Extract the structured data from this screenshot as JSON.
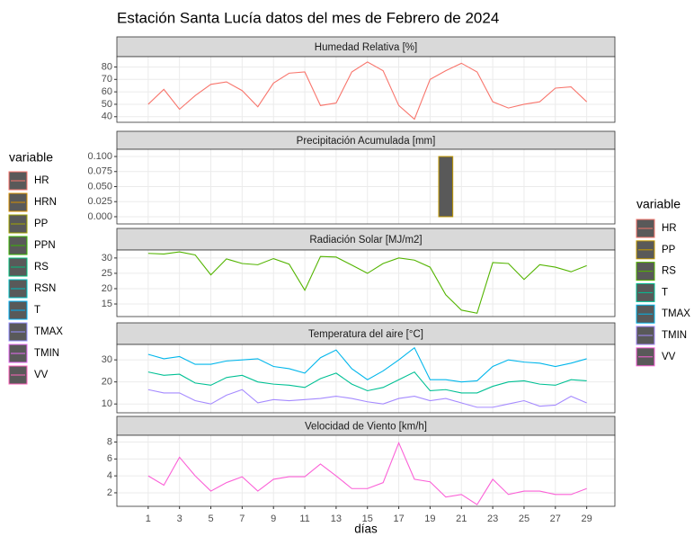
{
  "title": "Estación Santa Lucía datos del mes de Febrero de 2024",
  "x_label": "días",
  "legends": [
    {
      "title": "variable",
      "items": [
        {
          "name": "HR",
          "color": "#F8766D"
        },
        {
          "name": "HRN",
          "color": "#D89000"
        },
        {
          "name": "PP",
          "color": "#A3A500"
        },
        {
          "name": "PPN",
          "color": "#39B600"
        },
        {
          "name": "RS",
          "color": "#00BF7D"
        },
        {
          "name": "RSN",
          "color": "#00BFC4"
        },
        {
          "name": "T",
          "color": "#00B0F6"
        },
        {
          "name": "TMAX",
          "color": "#9590FF"
        },
        {
          "name": "TMIN",
          "color": "#E76BF3"
        },
        {
          "name": "VV",
          "color": "#FF62BC"
        }
      ]
    },
    {
      "title": "variable",
      "items": [
        {
          "name": "HR",
          "color": "#F8766D"
        },
        {
          "name": "PP",
          "color": "#C49A00"
        },
        {
          "name": "RS",
          "color": "#53B400"
        },
        {
          "name": "T",
          "color": "#00C094"
        },
        {
          "name": "TMAX",
          "color": "#00B6EB"
        },
        {
          "name": "TMIN",
          "color": "#A58AFF"
        },
        {
          "name": "VV",
          "color": "#FB61D7"
        }
      ]
    }
  ],
  "chart_data": [
    {
      "type": "line",
      "title": "Humedad Relativa [%]",
      "x": [
        1,
        2,
        3,
        4,
        5,
        6,
        7,
        8,
        9,
        10,
        11,
        12,
        13,
        14,
        15,
        16,
        17,
        18,
        19,
        20,
        21,
        22,
        23,
        24,
        25,
        26,
        27,
        28,
        29
      ],
      "xlim": [
        -1,
        30.8
      ],
      "xticks": [
        1,
        3,
        5,
        7,
        9,
        11,
        13,
        15,
        17,
        19,
        21,
        23,
        25,
        27,
        29
      ],
      "ylim": [
        35.5,
        88.3
      ],
      "yticks": [
        40,
        50,
        60,
        70,
        80
      ],
      "series": [
        {
          "name": "HR",
          "color": "#F8766D",
          "values": [
            50,
            62,
            46,
            57,
            66,
            68,
            61,
            48,
            67,
            75,
            76,
            49,
            51,
            76,
            84,
            77,
            49,
            38,
            70,
            77,
            83,
            76,
            52,
            47,
            50,
            52,
            63,
            64,
            52
          ]
        }
      ]
    },
    {
      "type": "bar",
      "title": "Precipitación Acumulada [mm]",
      "x": [
        1,
        2,
        3,
        4,
        5,
        6,
        7,
        8,
        9,
        10,
        11,
        12,
        13,
        14,
        15,
        16,
        17,
        18,
        19,
        20,
        21,
        22,
        23,
        24,
        25,
        26,
        27,
        28,
        29
      ],
      "xlim": [
        -1,
        30.8
      ],
      "xticks": [
        1,
        3,
        5,
        7,
        9,
        11,
        13,
        15,
        17,
        19,
        21,
        23,
        25,
        27,
        29
      ],
      "ylim": [
        -0.012,
        0.112
      ],
      "yticks": [
        {
          "value": 0,
          "label": "0.000"
        },
        {
          "value": 0.025,
          "label": "0.025"
        },
        {
          "value": 0.05,
          "label": "0.050"
        },
        {
          "value": 0.075,
          "label": "0.075"
        },
        {
          "value": 0.1,
          "label": "0.100"
        }
      ],
      "series": [
        {
          "name": "PP",
          "color": "#C49A00",
          "values": [
            0,
            0,
            0,
            0,
            0,
            0,
            0,
            0,
            0,
            0,
            0,
            0,
            0,
            0,
            0,
            0,
            0,
            0,
            0,
            0.1,
            0,
            0,
            0,
            0,
            0,
            0,
            0,
            0,
            0
          ]
        }
      ]
    },
    {
      "type": "line",
      "title": "Radiación Solar [MJ/m2]",
      "x": [
        1,
        2,
        3,
        4,
        5,
        6,
        7,
        8,
        9,
        10,
        11,
        12,
        13,
        14,
        15,
        16,
        17,
        18,
        19,
        20,
        21,
        22,
        23,
        24,
        25,
        26,
        27,
        28,
        29
      ],
      "xlim": [
        -1,
        30.8
      ],
      "xticks": [
        1,
        3,
        5,
        7,
        9,
        11,
        13,
        15,
        17,
        19,
        21,
        23,
        25,
        27,
        29
      ],
      "ylim": [
        10.9,
        32.6
      ],
      "yticks": [
        15,
        20,
        25,
        30
      ],
      "series": [
        {
          "name": "RS",
          "color": "#53B400",
          "values": [
            31.5,
            31.3,
            32,
            31,
            24.5,
            29.7,
            28.2,
            27.8,
            29.8,
            28,
            19.5,
            30.5,
            30.3,
            27.7,
            25,
            28.2,
            30,
            29.3,
            27,
            18,
            13,
            12,
            28.5,
            28.2,
            23,
            27.8,
            27,
            25.5,
            27.5
          ]
        }
      ]
    },
    {
      "type": "line",
      "title": "Temperatura del aire [°C]",
      "x": [
        1,
        2,
        3,
        4,
        5,
        6,
        7,
        8,
        9,
        10,
        11,
        12,
        13,
        14,
        15,
        16,
        17,
        18,
        19,
        20,
        21,
        22,
        23,
        24,
        25,
        26,
        27,
        28,
        29
      ],
      "xlim": [
        -1,
        30.8
      ],
      "xticks": [
        1,
        3,
        5,
        7,
        9,
        11,
        13,
        15,
        17,
        19,
        21,
        23,
        25,
        27,
        29
      ],
      "ylim": [
        6,
        37
      ],
      "yticks": [
        10,
        20,
        30
      ],
      "series": [
        {
          "name": "T",
          "color": "#00C094",
          "values": [
            24.5,
            23,
            23.5,
            19.5,
            18.5,
            22,
            23,
            20,
            19,
            18.5,
            17.5,
            21.5,
            24,
            19,
            16,
            17.5,
            21,
            24.5,
            16,
            16.5,
            15,
            15,
            18,
            20,
            20.5,
            19,
            18.5,
            21,
            20.5
          ]
        },
        {
          "name": "TMAX",
          "color": "#00B6EB",
          "values": [
            32.5,
            30.5,
            31.5,
            28,
            28,
            29.5,
            30,
            30.5,
            27,
            26,
            24,
            31,
            34.5,
            26,
            21,
            25,
            30,
            35.5,
            21,
            21,
            20,
            20.5,
            27,
            30,
            29,
            28.5,
            27,
            28.5,
            30.5
          ]
        },
        {
          "name": "TMIN",
          "color": "#A58AFF",
          "values": [
            16.5,
            15,
            15,
            11.5,
            10,
            14,
            16.5,
            10.5,
            12,
            11.5,
            12,
            12.5,
            13.5,
            12.5,
            11,
            10,
            12.5,
            13.5,
            11.5,
            12.5,
            10.5,
            8.5,
            8.5,
            10,
            11.5,
            9,
            9.5,
            13.5,
            10.5
          ]
        }
      ]
    },
    {
      "type": "line",
      "title": "Velocidad de Viento [km/h]",
      "x": [
        1,
        2,
        3,
        4,
        5,
        6,
        7,
        8,
        9,
        10,
        11,
        12,
        13,
        14,
        15,
        16,
        17,
        18,
        19,
        20,
        21,
        22,
        23,
        24,
        25,
        26,
        27,
        28,
        29
      ],
      "xlim": [
        -1,
        30.8
      ],
      "xticks": [
        1,
        3,
        5,
        7,
        9,
        11,
        13,
        15,
        17,
        19,
        21,
        23,
        25,
        27,
        29
      ],
      "ylim": [
        0.4,
        8.8
      ],
      "yticks": [
        2,
        4,
        6,
        8
      ],
      "series": [
        {
          "name": "VV",
          "color": "#FB61D7",
          "values": [
            4,
            2.9,
            6.2,
            4,
            2.2,
            3.2,
            3.9,
            2.2,
            3.6,
            3.9,
            3.9,
            5.4,
            4,
            2.5,
            2.5,
            3.2,
            7.9,
            3.6,
            3.3,
            1.5,
            1.8,
            0.6,
            3.6,
            1.8,
            2.2,
            2.2,
            1.8,
            1.8,
            2.5
          ]
        }
      ]
    }
  ]
}
